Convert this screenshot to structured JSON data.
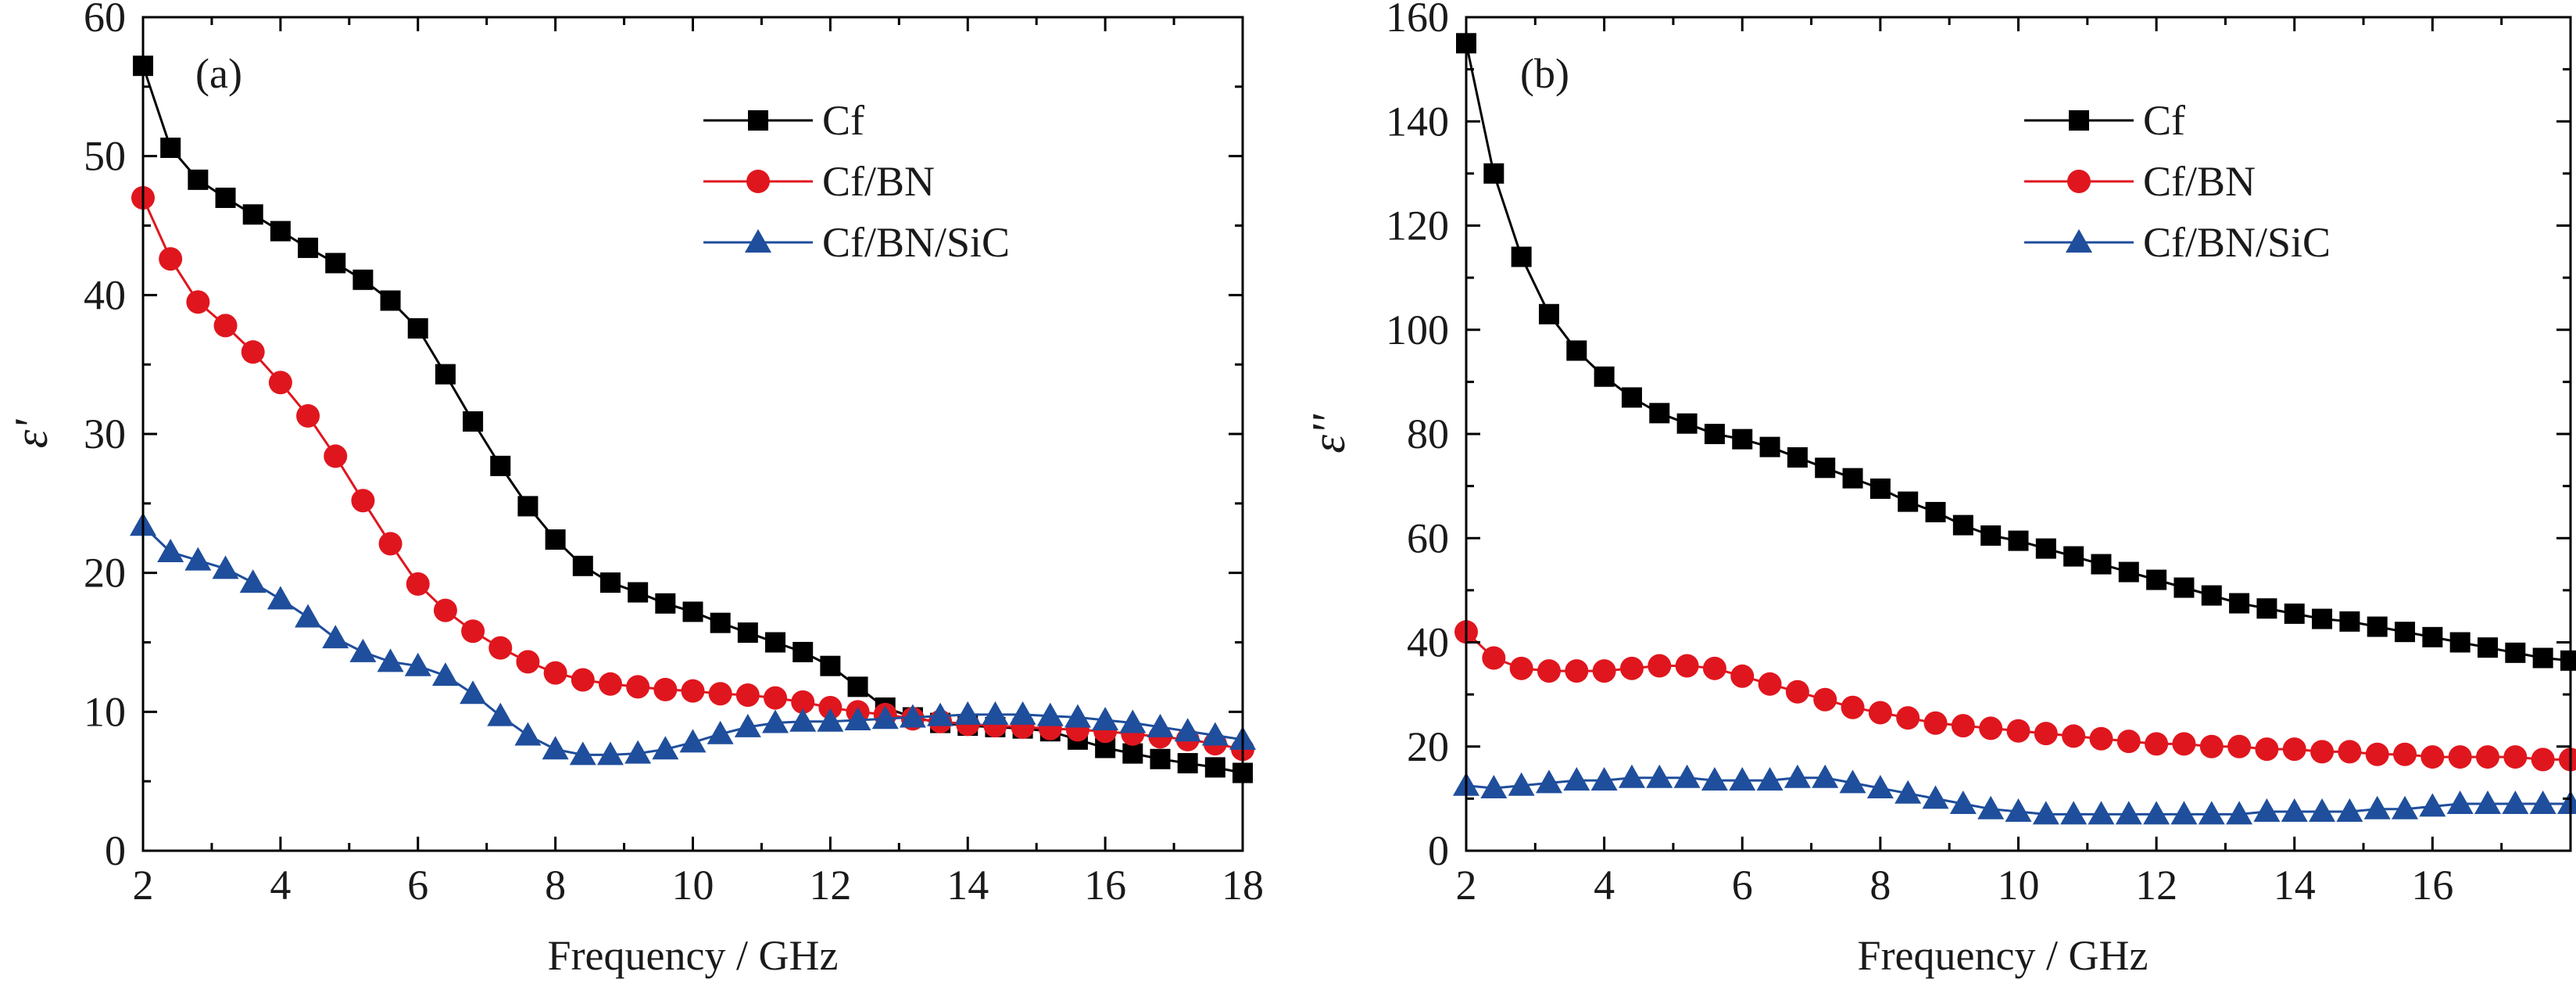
{
  "chart_data": [
    {
      "type": "line",
      "panel_label": "(a)",
      "xlabel": "Frequency / GHz",
      "ylabel": "ε'",
      "xlim": [
        2,
        18
      ],
      "ylim": [
        0,
        60
      ],
      "xticks": [
        "2",
        "4",
        "6",
        "8",
        "10",
        "12",
        "14",
        "16",
        "18"
      ],
      "yticks": [
        "0",
        "10",
        "20",
        "30",
        "40",
        "50",
        "60"
      ],
      "legend_position": "top-right",
      "grid": false,
      "series": [
        {
          "name": "Cf",
          "color": "#000000",
          "marker": "square",
          "x": [
            2,
            2.4,
            2.8,
            3.2,
            3.6,
            4,
            4.4,
            4.8,
            5.2,
            5.6,
            6,
            6.4,
            6.8,
            7.2,
            7.6,
            8,
            8.4,
            8.8,
            9.2,
            9.6,
            10,
            10.4,
            10.8,
            11.2,
            11.6,
            12,
            12.4,
            12.8,
            13.2,
            13.6,
            14,
            14.4,
            14.8,
            15.2,
            15.6,
            16,
            16.4,
            16.8,
            17.2,
            17.6,
            18
          ],
          "y": [
            56.5,
            50.6,
            48.3,
            47.0,
            45.8,
            44.6,
            43.4,
            42.3,
            41.1,
            39.6,
            37.6,
            34.3,
            30.9,
            27.7,
            24.8,
            22.4,
            20.5,
            19.3,
            18.6,
            17.8,
            17.2,
            16.4,
            15.7,
            15.0,
            14.3,
            13.3,
            11.8,
            10.3,
            9.6,
            9.2,
            9.0,
            8.9,
            8.8,
            8.6,
            8.0,
            7.4,
            7.0,
            6.6,
            6.3,
            6.0,
            5.6
          ]
        },
        {
          "name": "Cf/BN",
          "color": "#e0161e",
          "marker": "circle",
          "x": [
            2,
            2.4,
            2.8,
            3.2,
            3.6,
            4,
            4.4,
            4.8,
            5.2,
            5.6,
            6,
            6.4,
            6.8,
            7.2,
            7.6,
            8,
            8.4,
            8.8,
            9.2,
            9.6,
            10,
            10.4,
            10.8,
            11.2,
            11.6,
            12,
            12.4,
            12.8,
            13.2,
            13.6,
            14,
            14.4,
            14.8,
            15.2,
            15.6,
            16,
            16.4,
            16.8,
            17.2,
            17.6,
            18
          ],
          "y": [
            47.0,
            42.6,
            39.5,
            37.8,
            35.9,
            33.7,
            31.3,
            28.4,
            25.2,
            22.1,
            19.2,
            17.3,
            15.8,
            14.6,
            13.6,
            12.8,
            12.3,
            12.0,
            11.8,
            11.6,
            11.5,
            11.3,
            11.2,
            11.0,
            10.7,
            10.3,
            10.0,
            9.8,
            9.5,
            9.3,
            9.1,
            9.0,
            8.9,
            8.8,
            8.7,
            8.6,
            8.4,
            8.2,
            8.0,
            7.7,
            7.3
          ]
        },
        {
          "name": "Cf/BN/SiC",
          "color": "#1f4e9c",
          "marker": "triangle",
          "x": [
            2,
            2.4,
            2.8,
            3.2,
            3.6,
            4,
            4.4,
            4.8,
            5.2,
            5.6,
            6,
            6.4,
            6.8,
            7.2,
            7.6,
            8,
            8.4,
            8.8,
            9.2,
            9.6,
            10,
            10.4,
            10.8,
            11.2,
            11.6,
            12,
            12.4,
            12.8,
            13.2,
            13.6,
            14,
            14.4,
            14.8,
            15.2,
            15.6,
            16,
            16.4,
            16.8,
            17.2,
            17.6,
            18
          ],
          "y": [
            23.4,
            21.5,
            20.9,
            20.3,
            19.3,
            18.1,
            16.8,
            15.3,
            14.3,
            13.6,
            13.3,
            12.6,
            11.3,
            9.7,
            8.3,
            7.3,
            6.9,
            6.9,
            7.0,
            7.3,
            7.8,
            8.4,
            8.9,
            9.2,
            9.3,
            9.3,
            9.4,
            9.5,
            9.6,
            9.7,
            9.8,
            9.8,
            9.8,
            9.7,
            9.6,
            9.4,
            9.2,
            8.9,
            8.6,
            8.3,
            8.0
          ]
        }
      ]
    },
    {
      "type": "line",
      "panel_label": "(b)",
      "xlabel": "Frequency / GHz",
      "ylabel": "ε''",
      "xlim": [
        2,
        18
      ],
      "ylim": [
        0,
        160
      ],
      "xticks": [
        "2",
        "4",
        "6",
        "8",
        "10",
        "12",
        "14",
        "16"
      ],
      "yticks": [
        "0",
        "20",
        "40",
        "60",
        "80",
        "100",
        "120",
        "140",
        "160"
      ],
      "legend_position": "top-right",
      "grid": false,
      "series": [
        {
          "name": "Cf",
          "color": "#000000",
          "marker": "square",
          "x": [
            2,
            2.4,
            2.8,
            3.2,
            3.6,
            4,
            4.4,
            4.8,
            5.2,
            5.6,
            6,
            6.4,
            6.8,
            7.2,
            7.6,
            8,
            8.4,
            8.8,
            9.2,
            9.6,
            10,
            10.4,
            10.8,
            11.2,
            11.6,
            12,
            12.4,
            12.8,
            13.2,
            13.6,
            14,
            14.4,
            14.8,
            15.2,
            15.6,
            16,
            16.4,
            16.8,
            17.2,
            17.6,
            18
          ],
          "y": [
            155.0,
            130.0,
            114.0,
            103.0,
            96.0,
            91.0,
            87.0,
            84.0,
            82.0,
            80.0,
            79.0,
            77.5,
            75.5,
            73.5,
            71.5,
            69.5,
            67.0,
            65.0,
            62.5,
            60.5,
            59.5,
            58.0,
            56.5,
            55.0,
            53.5,
            52.0,
            50.5,
            49.0,
            47.5,
            46.5,
            45.5,
            44.5,
            44.0,
            43.0,
            42.0,
            41.0,
            40.0,
            39.0,
            38.0,
            37.0,
            36.5
          ]
        },
        {
          "name": "Cf/BN",
          "color": "#e0161e",
          "marker": "circle",
          "x": [
            2,
            2.4,
            2.8,
            3.2,
            3.6,
            4,
            4.4,
            4.8,
            5.2,
            5.6,
            6,
            6.4,
            6.8,
            7.2,
            7.6,
            8,
            8.4,
            8.8,
            9.2,
            9.6,
            10,
            10.4,
            10.8,
            11.2,
            11.6,
            12,
            12.4,
            12.8,
            13.2,
            13.6,
            14,
            14.4,
            14.8,
            15.2,
            15.6,
            16,
            16.4,
            16.8,
            17.2,
            17.6,
            18
          ],
          "y": [
            42.0,
            37.0,
            35.0,
            34.5,
            34.5,
            34.5,
            35.0,
            35.5,
            35.5,
            35.0,
            33.5,
            32.0,
            30.5,
            29.0,
            27.5,
            26.5,
            25.5,
            24.5,
            24.0,
            23.5,
            23.0,
            22.5,
            22.0,
            21.5,
            21.0,
            20.5,
            20.5,
            20.0,
            20.0,
            19.5,
            19.5,
            19.0,
            19.0,
            18.5,
            18.5,
            18.0,
            18.0,
            18.0,
            18.0,
            17.5,
            17.5
          ]
        },
        {
          "name": "Cf/BN/SiC",
          "color": "#1f4e9c",
          "marker": "triangle",
          "x": [
            2,
            2.4,
            2.8,
            3.2,
            3.6,
            4,
            4.4,
            4.8,
            5.2,
            5.6,
            6,
            6.4,
            6.8,
            7.2,
            7.6,
            8,
            8.4,
            8.8,
            9.2,
            9.6,
            10,
            10.4,
            10.8,
            11.2,
            11.6,
            12,
            12.4,
            12.8,
            13.2,
            13.6,
            14,
            14.4,
            14.8,
            15.2,
            15.6,
            16,
            16.4,
            16.8,
            17.2,
            17.6,
            18
          ],
          "y": [
            12.5,
            12.0,
            12.5,
            13.0,
            13.5,
            13.5,
            14.0,
            14.0,
            14.0,
            13.5,
            13.5,
            13.5,
            14.0,
            14.0,
            13.0,
            12.0,
            11.0,
            10.0,
            9.0,
            8.0,
            7.5,
            7.0,
            7.0,
            7.0,
            7.0,
            7.0,
            7.0,
            7.0,
            7.0,
            7.5,
            7.5,
            7.5,
            7.5,
            8.0,
            8.0,
            8.5,
            9.0,
            9.0,
            9.0,
            9.0,
            9.0
          ]
        }
      ]
    }
  ]
}
